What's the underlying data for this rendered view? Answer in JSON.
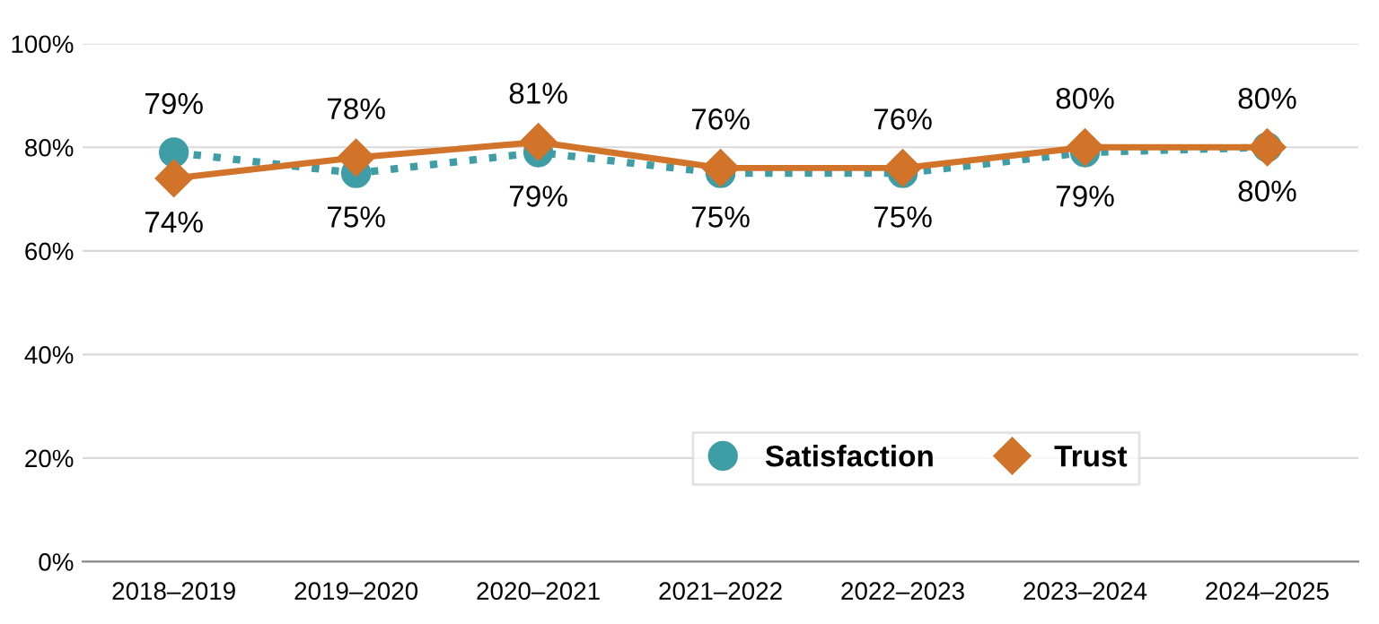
{
  "chart_data": {
    "type": "line",
    "categories": [
      "2018–2019",
      "2019–2020",
      "2020–2021",
      "2021–2022",
      "2022–2023",
      "2023–2024",
      "2024–2025"
    ],
    "series": [
      {
        "name": "Satisfaction",
        "color": "#3f9ea5",
        "marker": "circle",
        "line_style": "dotted",
        "values": [
          79,
          75,
          79,
          75,
          75,
          79,
          80
        ],
        "value_labels": [
          "79%",
          "75%",
          "79%",
          "75%",
          "75%",
          "79%",
          "80%"
        ]
      },
      {
        "name": "Trust",
        "color": "#d2732a",
        "marker": "diamond",
        "line_style": "solid",
        "values": [
          74,
          78,
          81,
          76,
          76,
          80,
          80
        ],
        "value_labels": [
          "74%",
          "78%",
          "81%",
          "76%",
          "76%",
          "80%",
          "80%"
        ]
      }
    ],
    "ylim": [
      0,
      100
    ],
    "yticks": [
      {
        "value": 0,
        "label": "0%"
      },
      {
        "value": 20,
        "label": "20%"
      },
      {
        "value": 40,
        "label": "40%"
      },
      {
        "value": 60,
        "label": "60%"
      },
      {
        "value": 80,
        "label": "80%"
      },
      {
        "value": 100,
        "label": "100%"
      }
    ],
    "grid": "y",
    "legend": "bottom right"
  }
}
